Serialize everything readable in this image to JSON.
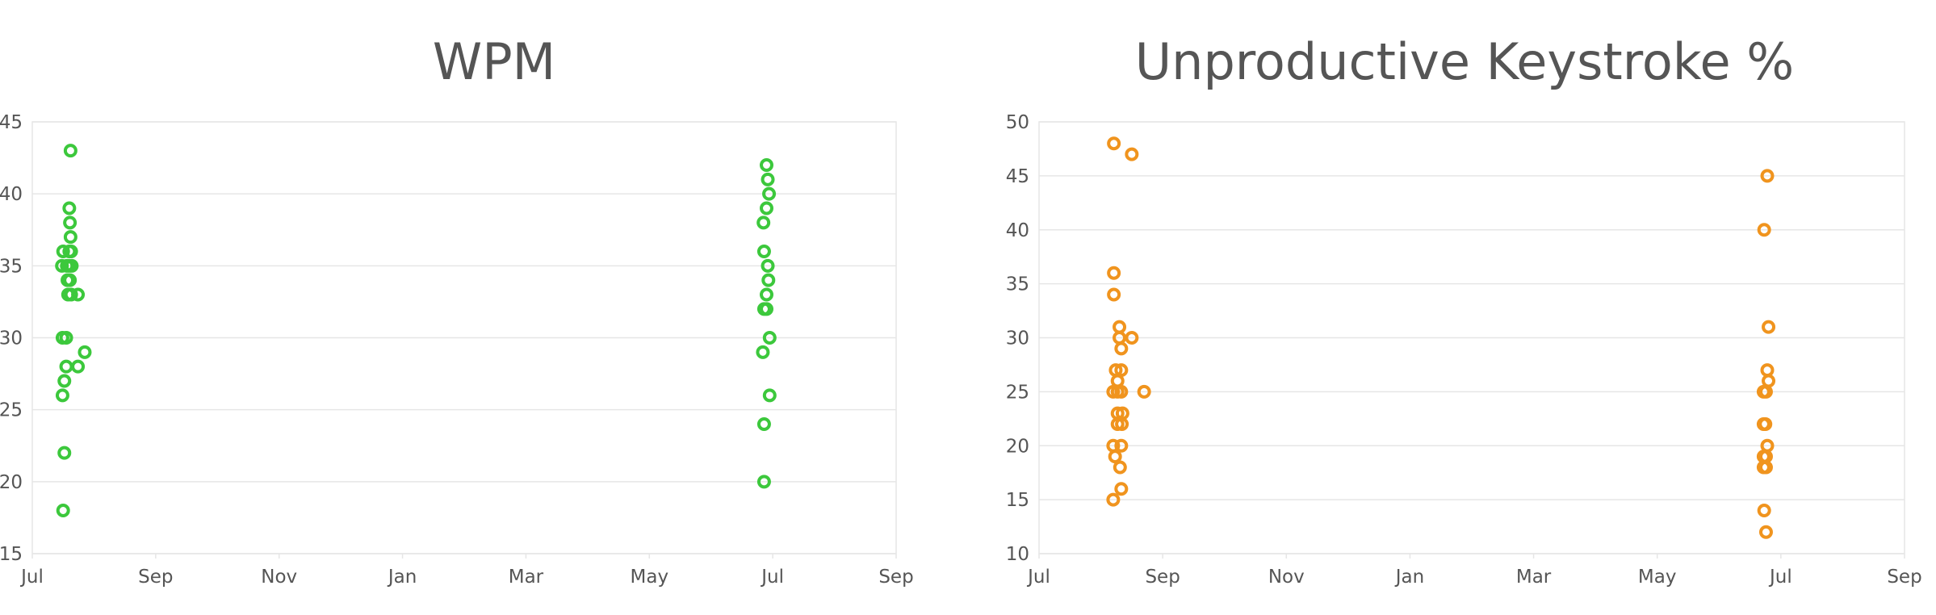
{
  "chart_data": [
    {
      "type": "scatter",
      "title": "WPM",
      "xlabel": "",
      "ylabel": "",
      "x_ticks": [
        "Jul",
        "Sep",
        "Nov",
        "Jan",
        "Mar",
        "May",
        "Jul",
        "Sep"
      ],
      "y_ticks": [
        15,
        20,
        25,
        30,
        35,
        40,
        45
      ],
      "xlim": [
        "Jul",
        "Sep"
      ],
      "ylim": [
        15,
        45
      ],
      "grid": "horizontal",
      "marker_color": "#3cc83c",
      "marker": "hollow-circle",
      "series": [
        {
          "points": [
            {
              "x": 0.62,
              "y": 43
            },
            {
              "x": 0.6,
              "y": 39
            },
            {
              "x": 0.61,
              "y": 38
            },
            {
              "x": 0.62,
              "y": 37
            },
            {
              "x": 0.6,
              "y": 36
            },
            {
              "x": 0.63,
              "y": 36
            },
            {
              "x": 0.5,
              "y": 36
            },
            {
              "x": 0.48,
              "y": 35
            },
            {
              "x": 0.56,
              "y": 35
            },
            {
              "x": 0.6,
              "y": 35
            },
            {
              "x": 0.64,
              "y": 35
            },
            {
              "x": 0.57,
              "y": 34
            },
            {
              "x": 0.61,
              "y": 34
            },
            {
              "x": 0.58,
              "y": 33
            },
            {
              "x": 0.63,
              "y": 33
            },
            {
              "x": 0.74,
              "y": 33
            },
            {
              "x": 0.49,
              "y": 30
            },
            {
              "x": 0.55,
              "y": 30
            },
            {
              "x": 0.85,
              "y": 29
            },
            {
              "x": 0.55,
              "y": 28
            },
            {
              "x": 0.74,
              "y": 28
            },
            {
              "x": 0.52,
              "y": 27
            },
            {
              "x": 0.49,
              "y": 26
            },
            {
              "x": 0.52,
              "y": 22
            },
            {
              "x": 0.5,
              "y": 18
            },
            {
              "x": 11.9,
              "y": 42
            },
            {
              "x": 11.92,
              "y": 41
            },
            {
              "x": 11.94,
              "y": 40
            },
            {
              "x": 11.9,
              "y": 39
            },
            {
              "x": 11.85,
              "y": 38
            },
            {
              "x": 11.86,
              "y": 36
            },
            {
              "x": 11.92,
              "y": 35
            },
            {
              "x": 11.93,
              "y": 34
            },
            {
              "x": 11.9,
              "y": 33
            },
            {
              "x": 11.86,
              "y": 32
            },
            {
              "x": 11.9,
              "y": 32
            },
            {
              "x": 11.95,
              "y": 30
            },
            {
              "x": 11.84,
              "y": 29
            },
            {
              "x": 11.95,
              "y": 26
            },
            {
              "x": 11.86,
              "y": 24
            },
            {
              "x": 11.86,
              "y": 20
            }
          ]
        }
      ]
    },
    {
      "type": "scatter",
      "title": "Unproductive Keystroke %",
      "xlabel": "",
      "ylabel": "",
      "x_ticks": [
        "Jul",
        "Sep",
        "Nov",
        "Jan",
        "Mar",
        "May",
        "Jul",
        "Sep"
      ],
      "y_ticks": [
        10,
        15,
        20,
        25,
        30,
        35,
        40,
        45,
        50
      ],
      "xlim": [
        "Jul",
        "Sep"
      ],
      "ylim": [
        10,
        50
      ],
      "grid": "horizontal",
      "marker_color": "#f0941e",
      "marker": "hollow-circle",
      "series": [
        {
          "points": [
            {
              "x": 1.21,
              "y": 48
            },
            {
              "x": 1.5,
              "y": 47
            },
            {
              "x": 1.21,
              "y": 36
            },
            {
              "x": 1.21,
              "y": 34
            },
            {
              "x": 1.3,
              "y": 31
            },
            {
              "x": 1.3,
              "y": 30
            },
            {
              "x": 1.5,
              "y": 30
            },
            {
              "x": 1.33,
              "y": 29
            },
            {
              "x": 1.24,
              "y": 27
            },
            {
              "x": 1.33,
              "y": 27
            },
            {
              "x": 1.27,
              "y": 26
            },
            {
              "x": 1.2,
              "y": 25
            },
            {
              "x": 1.27,
              "y": 25
            },
            {
              "x": 1.33,
              "y": 25
            },
            {
              "x": 1.7,
              "y": 25
            },
            {
              "x": 1.27,
              "y": 23
            },
            {
              "x": 1.35,
              "y": 23
            },
            {
              "x": 1.27,
              "y": 22
            },
            {
              "x": 1.34,
              "y": 22
            },
            {
              "x": 1.2,
              "y": 20
            },
            {
              "x": 1.33,
              "y": 20
            },
            {
              "x": 1.23,
              "y": 19
            },
            {
              "x": 1.31,
              "y": 18
            },
            {
              "x": 1.33,
              "y": 16
            },
            {
              "x": 1.2,
              "y": 15
            },
            {
              "x": 11.78,
              "y": 45
            },
            {
              "x": 11.73,
              "y": 40
            },
            {
              "x": 11.8,
              "y": 31
            },
            {
              "x": 11.78,
              "y": 27
            },
            {
              "x": 11.8,
              "y": 26
            },
            {
              "x": 11.72,
              "y": 25
            },
            {
              "x": 11.76,
              "y": 25
            },
            {
              "x": 11.72,
              "y": 22
            },
            {
              "x": 11.75,
              "y": 22
            },
            {
              "x": 11.78,
              "y": 20
            },
            {
              "x": 11.72,
              "y": 19
            },
            {
              "x": 11.76,
              "y": 19
            },
            {
              "x": 11.72,
              "y": 18
            },
            {
              "x": 11.76,
              "y": 18
            },
            {
              "x": 11.73,
              "y": 14
            },
            {
              "x": 11.76,
              "y": 12
            }
          ]
        }
      ]
    }
  ]
}
